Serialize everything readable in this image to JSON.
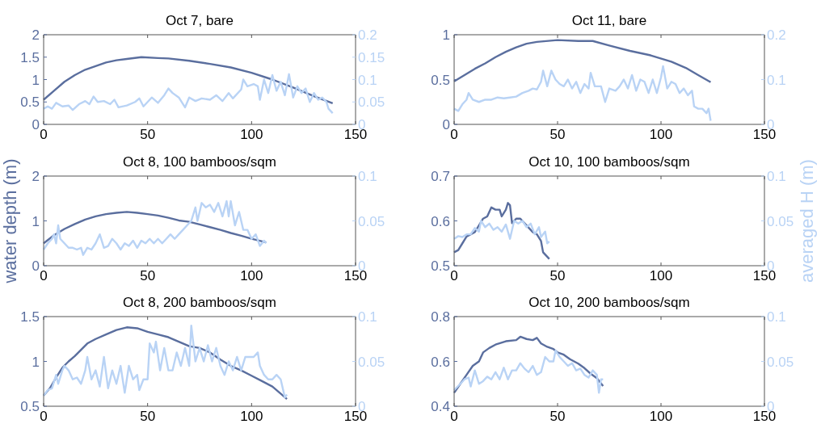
{
  "chart_data": [
    {
      "type": "line",
      "title": "Oct 7, bare",
      "xlim": [
        0,
        150
      ],
      "xticks": [
        0,
        50,
        100,
        150
      ],
      "ylim": [
        0,
        2
      ],
      "yticks": [
        0,
        0.5,
        1,
        1.5,
        2
      ],
      "y2lim": [
        0,
        0.2
      ],
      "y2ticks": [
        0,
        0.05,
        0.1,
        0.15,
        0.2
      ],
      "grid": false,
      "series": [
        {
          "color": "#5a6e9e",
          "x": [
            0,
            5,
            10,
            15,
            20,
            25,
            30,
            35,
            40,
            47,
            55,
            60,
            70,
            80,
            90,
            100,
            110,
            120,
            130,
            139
          ],
          "values": [
            0.55,
            0.75,
            0.95,
            1.1,
            1.22,
            1.3,
            1.38,
            1.43,
            1.46,
            1.5,
            1.48,
            1.47,
            1.42,
            1.35,
            1.27,
            1.15,
            1.0,
            0.82,
            0.63,
            0.47
          ]
        },
        {
          "color": "#b9d3f5",
          "axis": "y2",
          "x": [
            0,
            2,
            4,
            6,
            9,
            12,
            14,
            17,
            20,
            22,
            24,
            26,
            29,
            32,
            34,
            36,
            40,
            44,
            46,
            48,
            52,
            55,
            58,
            60,
            62,
            65,
            68,
            70,
            73,
            76,
            80,
            83,
            86,
            89,
            91,
            95,
            96,
            98,
            101,
            103,
            104,
            106,
            108,
            110,
            112,
            114,
            116,
            118,
            120,
            122,
            124,
            126,
            128,
            130,
            132,
            134,
            136,
            137,
            139
          ],
          "values": [
            0.035,
            0.04,
            0.035,
            0.048,
            0.04,
            0.042,
            0.032,
            0.045,
            0.052,
            0.045,
            0.062,
            0.05,
            0.052,
            0.045,
            0.055,
            0.038,
            0.042,
            0.05,
            0.058,
            0.04,
            0.06,
            0.048,
            0.065,
            0.08,
            0.07,
            0.06,
            0.038,
            0.06,
            0.052,
            0.058,
            0.055,
            0.065,
            0.052,
            0.07,
            0.058,
            0.078,
            0.1,
            0.085,
            0.09,
            0.085,
            0.055,
            0.1,
            0.07,
            0.11,
            0.075,
            0.095,
            0.065,
            0.112,
            0.06,
            0.085,
            0.07,
            0.08,
            0.05,
            0.07,
            0.055,
            0.06,
            0.05,
            0.035,
            0.025
          ]
        }
      ]
    },
    {
      "type": "line",
      "title": "Oct 11, bare",
      "xlim": [
        0,
        150
      ],
      "xticks": [
        0,
        50,
        100,
        150
      ],
      "ylim": [
        0,
        1
      ],
      "yticks": [
        0,
        0.5,
        1
      ],
      "y2lim": [
        0,
        0.2
      ],
      "y2ticks": [
        0,
        0.1,
        0.2
      ],
      "grid": false,
      "series": [
        {
          "color": "#5a6e9e",
          "x": [
            0,
            5,
            10,
            15,
            20,
            25,
            30,
            35,
            40,
            50,
            60,
            67,
            75,
            85,
            95,
            105,
            112,
            118,
            124
          ],
          "values": [
            0.48,
            0.55,
            0.62,
            0.68,
            0.75,
            0.81,
            0.86,
            0.9,
            0.92,
            0.94,
            0.93,
            0.93,
            0.88,
            0.82,
            0.77,
            0.7,
            0.63,
            0.55,
            0.47
          ]
        },
        {
          "color": "#b9d3f5",
          "axis": "y2",
          "x": [
            0,
            2,
            4,
            6,
            7,
            9,
            12,
            15,
            18,
            21,
            24,
            27,
            30,
            33,
            36,
            38,
            40,
            42,
            43,
            45,
            47,
            49,
            51,
            53,
            55,
            57,
            59,
            61,
            63,
            65,
            66,
            68,
            71,
            73,
            75,
            78,
            80,
            82,
            84,
            86,
            88,
            90,
            92,
            94,
            96,
            98,
            100,
            101,
            103,
            105,
            107,
            109,
            111,
            113,
            115,
            116,
            118,
            120,
            122,
            123,
            124
          ],
          "values": [
            0.035,
            0.03,
            0.045,
            0.055,
            0.07,
            0.055,
            0.05,
            0.055,
            0.055,
            0.06,
            0.058,
            0.06,
            0.062,
            0.07,
            0.075,
            0.08,
            0.078,
            0.095,
            0.12,
            0.085,
            0.12,
            0.1,
            0.09,
            0.085,
            0.1,
            0.08,
            0.095,
            0.07,
            0.09,
            0.08,
            0.115,
            0.085,
            0.085,
            0.05,
            0.08,
            0.075,
            0.085,
            0.1,
            0.08,
            0.11,
            0.075,
            0.1,
            0.095,
            0.07,
            0.1,
            0.07,
            0.105,
            0.13,
            0.08,
            0.095,
            0.09,
            0.07,
            0.08,
            0.065,
            0.075,
            0.04,
            0.035,
            0.035,
            0.025,
            0.035,
            0.008
          ]
        }
      ]
    },
    {
      "type": "line",
      "title": "Oct 8, 100 bamboos/sqm",
      "ylabel": "water depth (m)",
      "xlim": [
        0,
        150
      ],
      "xticks": [
        0,
        50,
        100,
        150
      ],
      "ylim": [
        0,
        2
      ],
      "yticks": [
        0,
        1,
        2
      ],
      "y2lim": [
        0,
        0.1
      ],
      "y2ticks": [
        0,
        0.05,
        0.1
      ],
      "grid": false,
      "series": [
        {
          "color": "#5a6e9e",
          "x": [
            0,
            5,
            10,
            15,
            20,
            25,
            30,
            35,
            40,
            45,
            50,
            55,
            60,
            65,
            70,
            75,
            80,
            85,
            90,
            95,
            100,
            107
          ],
          "values": [
            0.5,
            0.68,
            0.82,
            0.93,
            1.03,
            1.1,
            1.15,
            1.18,
            1.2,
            1.18,
            1.15,
            1.12,
            1.07,
            1.01,
            0.98,
            0.92,
            0.86,
            0.8,
            0.73,
            0.67,
            0.6,
            0.52
          ]
        },
        {
          "color": "#b9d3f5",
          "axis": "y2",
          "x": [
            0,
            2,
            4,
            5,
            6,
            7,
            8,
            10,
            12,
            14,
            16,
            18,
            19,
            21,
            23,
            25,
            27,
            29,
            31,
            33,
            35,
            37,
            39,
            41,
            43,
            45,
            47,
            49,
            51,
            53,
            55,
            57,
            59,
            61,
            63,
            65,
            67,
            69,
            71,
            73,
            74,
            76,
            78,
            80,
            82,
            84,
            86,
            88,
            89,
            90,
            92,
            94,
            96,
            98,
            100,
            102,
            104,
            106,
            107
          ],
          "values": [
            0.018,
            0.025,
            0.03,
            0.035,
            0.025,
            0.045,
            0.03,
            0.025,
            0.02,
            0.02,
            0.018,
            0.02,
            0.012,
            0.02,
            0.018,
            0.025,
            0.035,
            0.02,
            0.022,
            0.03,
            0.025,
            0.018,
            0.025,
            0.022,
            0.028,
            0.02,
            0.028,
            0.025,
            0.03,
            0.025,
            0.03,
            0.025,
            0.03,
            0.035,
            0.03,
            0.035,
            0.04,
            0.045,
            0.05,
            0.065,
            0.05,
            0.07,
            0.065,
            0.068,
            0.06,
            0.07,
            0.055,
            0.072,
            0.055,
            0.072,
            0.045,
            0.06,
            0.04,
            0.04,
            0.03,
            0.035,
            0.022,
            0.028,
            0.025
          ]
        }
      ]
    },
    {
      "type": "line",
      "title": "Oct 10, 100 bamboos/sqm",
      "y2label": "averaged H (m)",
      "xlim": [
        0,
        150
      ],
      "xticks": [
        0,
        50,
        100,
        150
      ],
      "ylim": [
        0.5,
        0.7
      ],
      "yticks": [
        0.5,
        0.6,
        0.7
      ],
      "y2lim": [
        0,
        0.1
      ],
      "y2ticks": [
        0,
        0.05,
        0.1
      ],
      "grid": false,
      "series": [
        {
          "color": "#5a6e9e",
          "x": [
            0,
            2,
            4,
            6,
            8,
            10,
            12,
            14,
            16,
            18,
            20,
            22,
            23,
            25,
            26,
            27,
            28,
            30,
            32,
            34,
            36,
            38,
            40,
            42,
            43,
            45,
            46
          ],
          "values": [
            0.53,
            0.535,
            0.55,
            0.565,
            0.57,
            0.575,
            0.59,
            0.605,
            0.61,
            0.63,
            0.625,
            0.625,
            0.61,
            0.625,
            0.64,
            0.635,
            0.595,
            0.605,
            0.605,
            0.595,
            0.585,
            0.575,
            0.57,
            0.555,
            0.53,
            0.52,
            0.515
          ]
        },
        {
          "color": "#b9d3f5",
          "axis": "y2",
          "x": [
            0,
            2,
            4,
            6,
            8,
            10,
            12,
            13,
            15,
            17,
            19,
            21,
            23,
            25,
            27,
            29,
            31,
            33,
            35,
            37,
            39,
            41,
            42,
            44,
            45,
            46
          ],
          "values": [
            0.03,
            0.033,
            0.032,
            0.035,
            0.035,
            0.042,
            0.038,
            0.05,
            0.043,
            0.047,
            0.04,
            0.043,
            0.038,
            0.046,
            0.03,
            0.05,
            0.047,
            0.05,
            0.043,
            0.047,
            0.035,
            0.043,
            0.032,
            0.038,
            0.025,
            0.027
          ]
        }
      ]
    },
    {
      "type": "line",
      "title": "Oct 8, 200 bamboos/sqm",
      "xlim": [
        0,
        150
      ],
      "xticks": [
        0,
        50,
        100,
        150
      ],
      "ylim": [
        0.5,
        1.5
      ],
      "yticks": [
        0.5,
        1,
        1.5
      ],
      "y2lim": [
        0,
        0.1
      ],
      "y2ticks": [
        0,
        0.05,
        0.1
      ],
      "grid": false,
      "series": [
        {
          "color": "#5a6e9e",
          "x": [
            0,
            3,
            6,
            9,
            12,
            15,
            18,
            21,
            25,
            30,
            35,
            40,
            45,
            50,
            55,
            60,
            65,
            70,
            75,
            80,
            85,
            90,
            95,
            100,
            105,
            110,
            115,
            117
          ],
          "values": [
            0.62,
            0.7,
            0.82,
            0.93,
            1.0,
            1.06,
            1.13,
            1.2,
            1.25,
            1.3,
            1.35,
            1.38,
            1.37,
            1.33,
            1.3,
            1.27,
            1.22,
            1.17,
            1.15,
            1.1,
            1.02,
            0.95,
            0.9,
            0.84,
            0.78,
            0.72,
            0.62,
            0.58
          ]
        },
        {
          "color": "#b9d3f5",
          "axis": "y2",
          "x": [
            0,
            2,
            4,
            6,
            7,
            9,
            10,
            12,
            14,
            16,
            18,
            20,
            21,
            23,
            25,
            27,
            29,
            31,
            33,
            35,
            37,
            39,
            41,
            43,
            45,
            46,
            48,
            50,
            51,
            53,
            54,
            56,
            58,
            60,
            62,
            64,
            66,
            68,
            70,
            71,
            73,
            75,
            77,
            79,
            81,
            83,
            85,
            87,
            89,
            91,
            93,
            95,
            97,
            99,
            101,
            103,
            104,
            106,
            108,
            110,
            112,
            114,
            116,
            117
          ],
          "values": [
            0.012,
            0.018,
            0.02,
            0.035,
            0.025,
            0.04,
            0.045,
            0.04,
            0.03,
            0.032,
            0.025,
            0.04,
            0.055,
            0.03,
            0.04,
            0.022,
            0.055,
            0.02,
            0.04,
            0.025,
            0.045,
            0.015,
            0.045,
            0.03,
            0.035,
            0.018,
            0.03,
            0.03,
            0.07,
            0.06,
            0.072,
            0.04,
            0.065,
            0.04,
            0.04,
            0.06,
            0.045,
            0.065,
            0.045,
            0.09,
            0.05,
            0.065,
            0.05,
            0.068,
            0.05,
            0.065,
            0.045,
            0.035,
            0.05,
            0.04,
            0.055,
            0.04,
            0.055,
            0.055,
            0.055,
            0.06,
            0.045,
            0.035,
            0.03,
            0.03,
            0.035,
            0.03,
            0.01,
            0.013
          ]
        }
      ]
    },
    {
      "type": "line",
      "title": "Oct 10, 200 bamboos/sqm",
      "xlim": [
        0,
        150
      ],
      "xticks": [
        0,
        50,
        100,
        150
      ],
      "ylim": [
        0.4,
        0.8
      ],
      "yticks": [
        0.4,
        0.6,
        0.8
      ],
      "y2lim": [
        0,
        0.1
      ],
      "y2ticks": [
        0,
        0.05,
        0.1
      ],
      "grid": false,
      "series": [
        {
          "color": "#5a6e9e",
          "x": [
            0,
            3,
            6,
            9,
            12,
            14,
            17,
            20,
            25,
            30,
            32,
            35,
            38,
            40,
            42,
            45,
            48,
            50,
            53,
            56,
            60,
            63,
            66,
            69,
            72
          ],
          "values": [
            0.46,
            0.5,
            0.54,
            0.58,
            0.6,
            0.64,
            0.66,
            0.675,
            0.69,
            0.695,
            0.71,
            0.7,
            0.695,
            0.705,
            0.68,
            0.665,
            0.655,
            0.64,
            0.63,
            0.61,
            0.59,
            0.57,
            0.545,
            0.525,
            0.49
          ]
        },
        {
          "color": "#b9d3f5",
          "axis": "y2",
          "x": [
            0,
            3,
            5,
            7,
            8,
            10,
            12,
            14,
            16,
            18,
            20,
            22,
            24,
            26,
            28,
            30,
            32,
            34,
            36,
            38,
            40,
            42,
            44,
            46,
            48,
            49,
            51,
            53,
            55,
            57,
            59,
            61,
            63,
            65,
            67,
            69,
            70,
            71,
            72
          ],
          "values": [
            0.018,
            0.025,
            0.03,
            0.032,
            0.022,
            0.04,
            0.025,
            0.028,
            0.033,
            0.03,
            0.038,
            0.03,
            0.043,
            0.03,
            0.04,
            0.04,
            0.048,
            0.042,
            0.038,
            0.045,
            0.035,
            0.038,
            0.055,
            0.05,
            0.05,
            0.062,
            0.055,
            0.05,
            0.045,
            0.048,
            0.04,
            0.042,
            0.035,
            0.032,
            0.04,
            0.035,
            0.015,
            0.03,
            0.03
          ]
        }
      ]
    }
  ]
}
